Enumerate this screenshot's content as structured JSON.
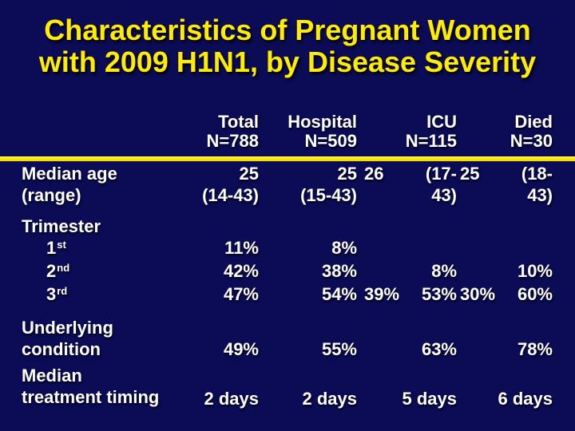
{
  "slide": {
    "title_lines": [
      "Characteristics of Pregnant Women",
      "with 2009 H1N1, by Disease Severity"
    ],
    "colors": {
      "background": "#0b0b56",
      "title_text": "#ffec00",
      "table_text": "#ffffff",
      "divider": "#ffee00"
    }
  },
  "header": {
    "total": {
      "l1": "Total",
      "l2": "N=788"
    },
    "hospital": {
      "l1": "Hospital",
      "l2": "N=509"
    },
    "icu": {
      "l1": "ICU",
      "l2": "N=115"
    },
    "died": {
      "l1": "Died",
      "l2": "N=30"
    }
  },
  "rows": {
    "median_age": {
      "label_l1": "Median age",
      "label_l2": "(range)",
      "total_l1": "25",
      "total_l2": "(14-43)",
      "hospital_l1": "25",
      "hospital_l2": "(15-43)",
      "icu_l1a": "26",
      "icu_l1b": "(17-",
      "icu_l2": "43)",
      "died_l1a": "25",
      "died_l1b": "(18-",
      "died_l2": "43)"
    },
    "trimester": {
      "label": "Trimester",
      "first": {
        "base": "1",
        "sup": "st",
        "total": "11%",
        "hospital": "8%"
      },
      "second": {
        "base": "2",
        "sup": "nd",
        "total": "42%",
        "hospital": "38%",
        "icu": "8%",
        "died": "10%"
      },
      "third": {
        "base": "3",
        "sup": "rd",
        "total": "47%",
        "hospital": "54%",
        "icu_a": "39%",
        "icu_b": "53%",
        "died_a": "30%",
        "died_b": "60%"
      }
    },
    "underlying": {
      "label_l1": "Underlying",
      "label_l2": "condition",
      "total": "49%",
      "hospital": "55%",
      "icu": "63%",
      "died": "78%"
    },
    "treatment": {
      "label_l1": "Median",
      "label_l2": "treatment timing",
      "total": "2 days",
      "hospital": "2 days",
      "icu": "5 days",
      "died": "6 days"
    }
  },
  "chart_data": {
    "type": "table",
    "title": "Characteristics of Pregnant Women with 2009 H1N1, by Disease Severity",
    "columns": [
      "Total N=788",
      "Hospital N=509",
      "ICU N=115",
      "Died N=30"
    ],
    "rows": [
      {
        "label": "Median age (range)",
        "values": [
          "25 (14-43)",
          "25 (15-43)",
          "26 (17-43)",
          "25 (18-43)"
        ]
      },
      {
        "label": "Trimester 1st",
        "values": [
          "11%",
          "8%",
          "",
          ""
        ]
      },
      {
        "label": "Trimester 2nd",
        "values": [
          "42%",
          "38%",
          "8%",
          "10%"
        ]
      },
      {
        "label": "Trimester 3rd",
        "values": [
          "47%",
          "54%",
          "39% 53%",
          "30% 60%"
        ]
      },
      {
        "label": "Underlying condition",
        "values": [
          "49%",
          "55%",
          "63%",
          "78%"
        ]
      },
      {
        "label": "Median treatment timing",
        "values": [
          "2 days",
          "2 days",
          "5 days",
          "6 days"
        ]
      }
    ]
  }
}
